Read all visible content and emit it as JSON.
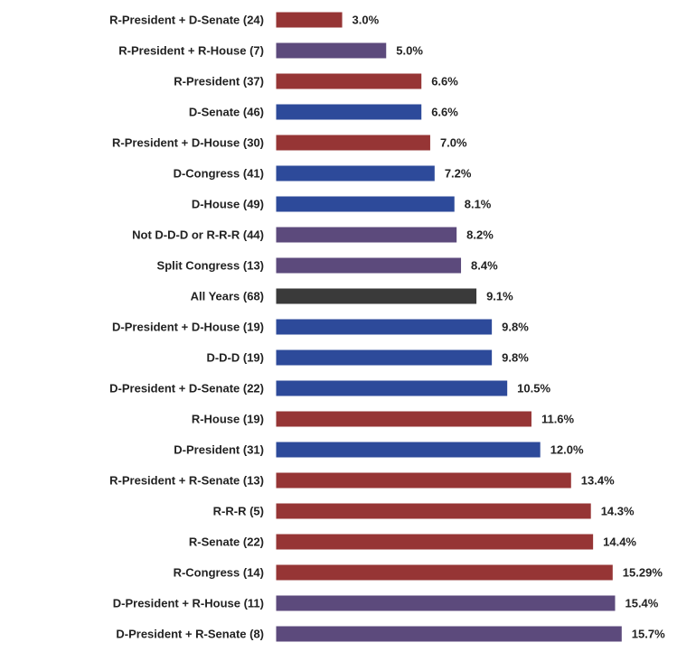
{
  "chart_data": {
    "type": "bar",
    "orientation": "horizontal",
    "title": "",
    "xlabel": "",
    "ylabel": "",
    "xlim": [
      0,
      16
    ],
    "grid": false,
    "legend": "none",
    "value_suffix": "%",
    "colors": {
      "republican": "#963535",
      "democrat": "#2d4a9a",
      "mixed": "#5c4a7c",
      "all": "#3a3a3a"
    },
    "categories": [
      "R-President + D-Senate (24)",
      "R-President + R-House (7)",
      "R-President (37)",
      "D-Senate (46)",
      "R-President + D-House (30)",
      "D-Congress (41)",
      "D-House (49)",
      "Not D-D-D or R-R-R (44)",
      "Split Congress (13)",
      "All Years (68)",
      "D-President + D-House (19)",
      "D-D-D (19)",
      "D-President + D-Senate (22)",
      "R-House (19)",
      "D-President (31)",
      "R-President + R-Senate (13)",
      "R-R-R (5)",
      "R-Senate (22)",
      "R-Congress (14)",
      "D-President + R-House (11)",
      "D-President + R-Senate (8)"
    ],
    "values": [
      3.0,
      5.0,
      6.6,
      6.6,
      7.0,
      7.2,
      8.1,
      8.2,
      8.4,
      9.1,
      9.8,
      9.8,
      10.5,
      11.6,
      12.0,
      13.4,
      14.3,
      14.4,
      15.29,
      15.4,
      15.7
    ],
    "value_labels": [
      "3.0%",
      "5.0%",
      "6.6%",
      "6.6%",
      "7.0%",
      "7.2%",
      "8.1%",
      "8.2%",
      "8.4%",
      "9.1%",
      "9.8%",
      "9.8%",
      "10.5%",
      "11.6%",
      "12.0%",
      "13.4%",
      "14.3%",
      "14.4%",
      "15.29%",
      "15.4%",
      "15.7%"
    ],
    "bar_groups": [
      "republican",
      "mixed",
      "republican",
      "democrat",
      "republican",
      "democrat",
      "democrat",
      "mixed",
      "mixed",
      "all",
      "democrat",
      "democrat",
      "democrat",
      "republican",
      "democrat",
      "republican",
      "republican",
      "republican",
      "republican",
      "mixed",
      "mixed"
    ]
  }
}
